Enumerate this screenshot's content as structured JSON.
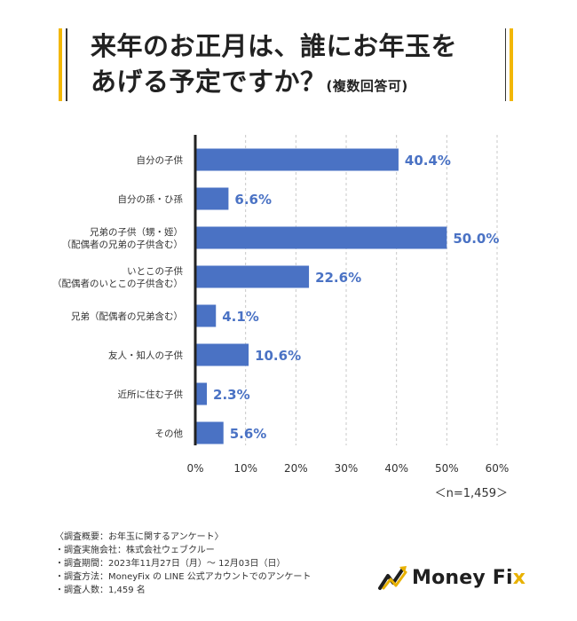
{
  "title": {
    "line1": "来年のお正月は、誰にお年玉を",
    "line2": "あげる予定ですか？",
    "line2_note": "(複数回答可)"
  },
  "chart_data": {
    "type": "bar",
    "orientation": "horizontal",
    "categories": [
      [
        "自分の子供"
      ],
      [
        "自分の孫・ひ孫"
      ],
      [
        "兄弟の子供（甥・姪）",
        "（配偶者の兄弟の子供含む）"
      ],
      [
        "いとこの子供",
        "（配偶者のいとこの子供含む）"
      ],
      [
        "兄弟（配偶者の兄弟含む）"
      ],
      [
        "友人・知人の子供"
      ],
      [
        "近所に住む子供"
      ],
      [
        "その他"
      ]
    ],
    "values": [
      40.4,
      6.6,
      50.0,
      22.6,
      4.1,
      10.6,
      2.3,
      5.6
    ],
    "value_labels": [
      "40.4%",
      "6.6%",
      "50.0%",
      "22.6%",
      "4.1%",
      "10.6%",
      "2.3%",
      "5.6%"
    ],
    "xlim": [
      0,
      60
    ],
    "x_ticks": [
      "0%",
      "10%",
      "20%",
      "30%",
      "40%",
      "50%",
      "60%"
    ],
    "grid": "vertical dashed",
    "bar_color": "#4a72c4",
    "label_color": "#4a72c4"
  },
  "sample_note": "＜n=1,459＞",
  "footer": {
    "heading": "〈調査概要：お年玉に関するアンケート〉",
    "lines": [
      "・調査実施会社：株式会社ウェブクルー",
      "・調査期間：2023年11月27日（月）～ 12月03日（日）",
      "・調査方法：MoneyFix の LINE 公式アカウントでのアンケート",
      "・調査人数：1,459 名"
    ]
  },
  "logo": {
    "text_main": "Money Fi",
    "text_accent": "x",
    "accent_color": "#e8b100"
  }
}
